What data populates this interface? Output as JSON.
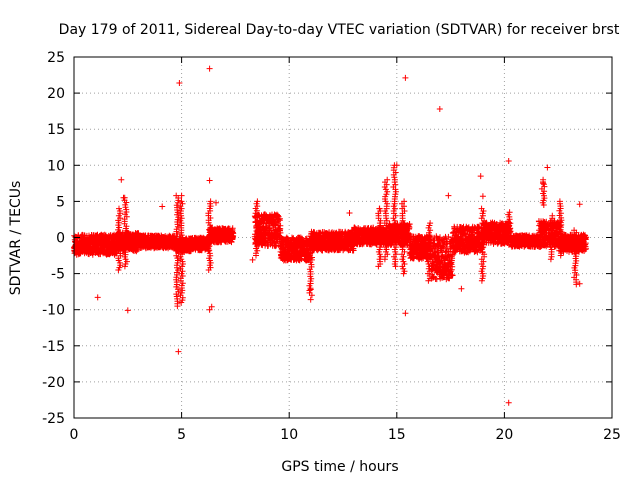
{
  "chart_data": {
    "type": "scatter",
    "title": "Day 179 of 2011, Sidereal Day-to-day VTEC variation (SDTVAR) for receiver brst",
    "xlabel": "GPS time / hours",
    "ylabel": "SDTVAR / TECUs",
    "xlim": [
      0,
      25
    ],
    "ylim": [
      -25,
      25
    ],
    "xticks": [
      0,
      5,
      10,
      15,
      20,
      25
    ],
    "yticks": [
      -25,
      -20,
      -15,
      -10,
      -5,
      0,
      5,
      10,
      15,
      20,
      25
    ],
    "xtick_labels": [
      "0",
      "5",
      "10",
      "15",
      "20",
      "25"
    ],
    "ytick_labels": [
      "-25",
      "-20",
      "-15",
      "-10",
      "-5",
      "0",
      "5",
      "10",
      "15",
      "20",
      "25"
    ],
    "grid": true,
    "marker": "+",
    "color": "#ff0000",
    "bands": [
      {
        "x0": 0.0,
        "x1": 2.0,
        "y_center": -1.0,
        "half_width": 1.4
      },
      {
        "x0": 2.0,
        "x1": 3.0,
        "y_center": -0.6,
        "half_width": 1.3
      },
      {
        "x0": 3.0,
        "x1": 4.7,
        "y_center": -0.6,
        "half_width": 0.9
      },
      {
        "x0": 4.7,
        "x1": 5.5,
        "y_center": -1.0,
        "half_width": 0.9
      },
      {
        "x0": 5.5,
        "x1": 6.3,
        "y_center": -0.9,
        "half_width": 0.9
      },
      {
        "x0": 6.3,
        "x1": 7.4,
        "y_center": 0.3,
        "half_width": 1.0
      },
      {
        "x0": 8.4,
        "x1": 9.6,
        "y_center": 1.0,
        "half_width": 2.2
      },
      {
        "x0": 9.6,
        "x1": 11.0,
        "y_center": -1.6,
        "half_width": 1.6
      },
      {
        "x0": 11.0,
        "x1": 13.0,
        "y_center": -0.5,
        "half_width": 1.3
      },
      {
        "x0": 13.0,
        "x1": 14.6,
        "y_center": 0.2,
        "half_width": 1.2
      },
      {
        "x0": 14.6,
        "x1": 15.6,
        "y_center": 0.4,
        "half_width": 1.5
      },
      {
        "x0": 15.6,
        "x1": 16.6,
        "y_center": -1.4,
        "half_width": 1.6
      },
      {
        "x0": 16.6,
        "x1": 17.6,
        "y_center": -2.8,
        "half_width": 3.0
      },
      {
        "x0": 17.6,
        "x1": 19.0,
        "y_center": -0.3,
        "half_width": 1.8
      },
      {
        "x0": 19.0,
        "x1": 20.3,
        "y_center": 0.6,
        "half_width": 1.5
      },
      {
        "x0": 20.3,
        "x1": 21.6,
        "y_center": -0.5,
        "half_width": 0.8
      },
      {
        "x0": 21.6,
        "x1": 22.6,
        "y_center": 0.5,
        "half_width": 1.8
      },
      {
        "x0": 22.6,
        "x1": 23.8,
        "y_center": -0.8,
        "half_width": 1.2
      }
    ],
    "columns": [
      {
        "x": 2.1,
        "y0": -4.5,
        "y1": 4.0
      },
      {
        "x": 2.4,
        "y0": -4.0,
        "y1": 5.5
      },
      {
        "x": 4.8,
        "y0": -9.5,
        "y1": 5.8
      },
      {
        "x": 5.0,
        "y0": -9.0,
        "y1": 5.0
      },
      {
        "x": 6.3,
        "y0": -4.5,
        "y1": 5.0
      },
      {
        "x": 8.5,
        "y0": -2.5,
        "y1": 5.0
      },
      {
        "x": 11.0,
        "y0": -8.0,
        "y1": 0.5
      },
      {
        "x": 14.2,
        "y0": -4.0,
        "y1": 4.0
      },
      {
        "x": 14.5,
        "y0": -3.0,
        "y1": 8.0
      },
      {
        "x": 14.9,
        "y0": -4.0,
        "y1": 10.0
      },
      {
        "x": 15.3,
        "y0": -5.0,
        "y1": 5.0
      },
      {
        "x": 16.5,
        "y0": -6.0,
        "y1": 2.0
      },
      {
        "x": 19.0,
        "y0": -6.0,
        "y1": 4.0
      },
      {
        "x": 20.2,
        "y0": -1.0,
        "y1": 3.5
      },
      {
        "x": 21.8,
        "y0": 4.5,
        "y1": 8.0
      },
      {
        "x": 22.2,
        "y0": -3.0,
        "y1": 3.0
      },
      {
        "x": 22.6,
        "y0": -2.5,
        "y1": 5.0
      },
      {
        "x": 23.3,
        "y0": -6.5,
        "y1": 1.0
      }
    ],
    "outliers": [
      [
        1.1,
        -8.3
      ],
      [
        2.2,
        8.0
      ],
      [
        2.5,
        -10.1
      ],
      [
        2.3,
        5.5
      ],
      [
        4.1,
        4.3
      ],
      [
        4.9,
        21.4
      ],
      [
        4.85,
        -15.8
      ],
      [
        5.0,
        5.8
      ],
      [
        6.3,
        23.4
      ],
      [
        6.3,
        7.9
      ],
      [
        6.3,
        -10.0
      ],
      [
        6.4,
        -9.6
      ],
      [
        6.6,
        4.8
      ],
      [
        8.3,
        -3.1
      ],
      [
        11.0,
        -7.2
      ],
      [
        11.0,
        -8.6
      ],
      [
        12.8,
        3.4
      ],
      [
        14.2,
        4.0
      ],
      [
        15.4,
        22.1
      ],
      [
        15.4,
        -10.5
      ],
      [
        15.0,
        10.0
      ],
      [
        17.0,
        17.8
      ],
      [
        17.4,
        5.8
      ],
      [
        18.0,
        -7.1
      ],
      [
        18.9,
        8.5
      ],
      [
        19.0,
        5.7
      ],
      [
        20.2,
        10.6
      ],
      [
        20.2,
        -22.9
      ],
      [
        22.0,
        9.7
      ],
      [
        21.8,
        7.5
      ],
      [
        23.5,
        4.6
      ],
      [
        23.5,
        -6.4
      ]
    ]
  }
}
